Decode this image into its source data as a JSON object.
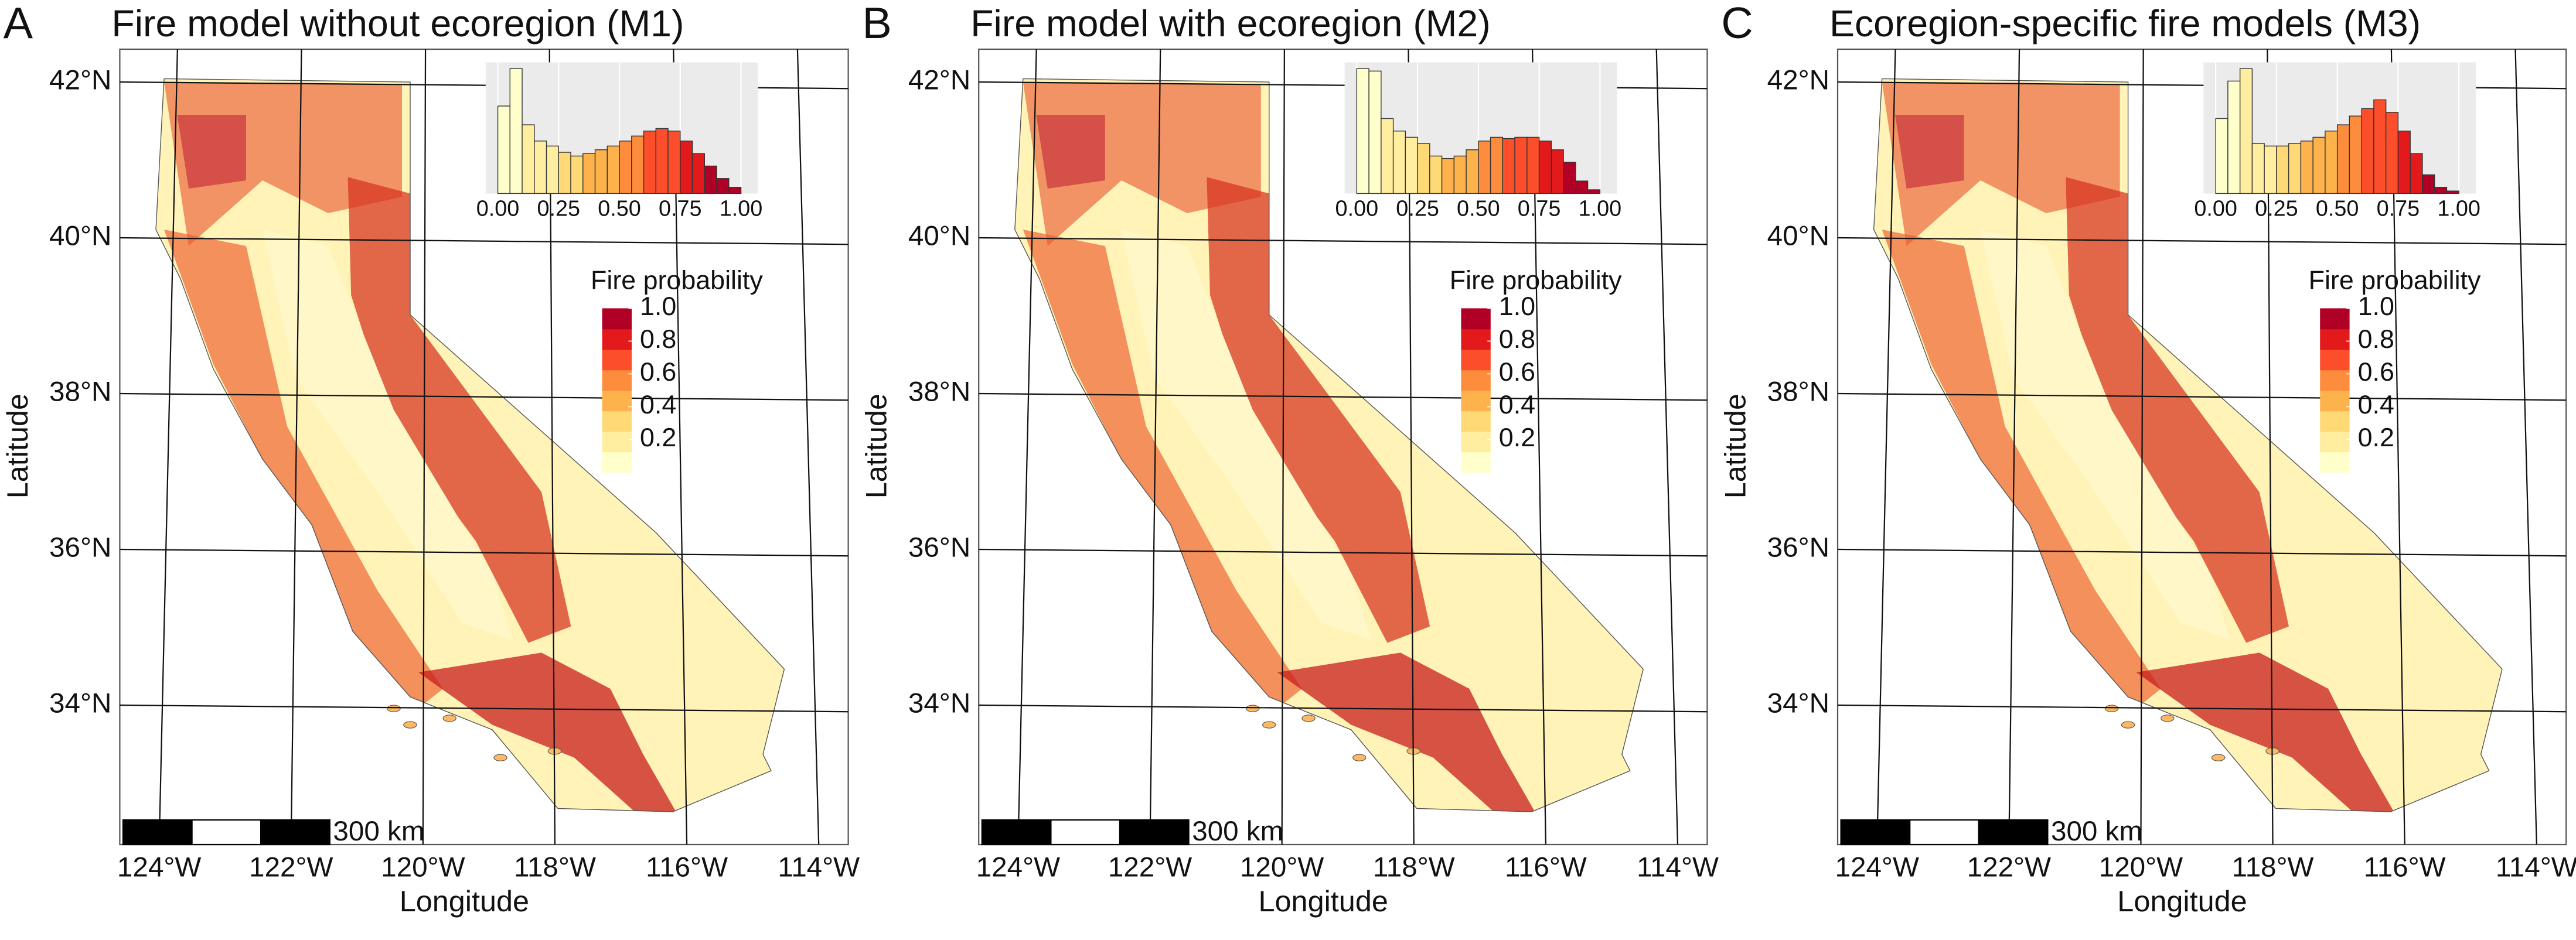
{
  "panels": [
    {
      "letter": "A",
      "title": "Fire model without ecoregion (M1)",
      "xlabel": "Longitude",
      "ylabel": "Latitude",
      "lat_ticks": [
        {
          "value": 42,
          "label": "42°N"
        },
        {
          "value": 40,
          "label": "40°N"
        },
        {
          "value": 38,
          "label": "38°N"
        },
        {
          "value": 36,
          "label": "36°N"
        },
        {
          "value": 34,
          "label": "34°N"
        }
      ],
      "lon_ticks": [
        {
          "value": -124,
          "label": "124°W"
        },
        {
          "value": -122,
          "label": "122°W"
        },
        {
          "value": -120,
          "label": "120°W"
        },
        {
          "value": -118,
          "label": "118°W"
        },
        {
          "value": -116,
          "label": "116°W"
        },
        {
          "value": -114,
          "label": "114°W"
        }
      ],
      "scale_bar": "300 km",
      "legend": {
        "title": "Fire probability",
        "lim": [
          0,
          1
        ],
        "ticks": [
          0.2,
          0.4,
          0.6,
          0.8,
          {
            "value": 1,
            "label": "1.0"
          }
        ],
        "colors": [
          "#ffffcc",
          "#ffeda0",
          "#fed976",
          "#feb24c",
          "#fd8d3c",
          "#fc4e2a",
          "#e31a1c",
          "#b10026"
        ]
      },
      "histogram": {
        "type": "histogram",
        "bins": [
          0,
          0.05,
          0.1,
          0.15,
          0.2,
          0.25,
          0.3,
          0.35,
          0.4,
          0.45,
          0.5,
          0.55,
          0.6,
          0.65,
          0.7,
          0.75,
          0.8,
          0.85,
          0.9,
          0.95,
          1
        ],
        "values": [
          0.7,
          1.0,
          0.55,
          0.42,
          0.38,
          0.33,
          0.3,
          0.32,
          0.35,
          0.38,
          0.42,
          0.46,
          0.5,
          0.52,
          0.5,
          0.42,
          0.32,
          0.22,
          0.12,
          0.05
        ],
        "xlim": [
          -0.05,
          1.07
        ],
        "ylim": [
          0,
          1.05
        ],
        "xticks": [
          {
            "value": 0,
            "label": "0.00"
          },
          0.25,
          {
            "value": 0.5,
            "label": "0.50"
          },
          0.75,
          {
            "value": 1,
            "label": "1.00"
          }
        ]
      }
    },
    {
      "letter": "B",
      "title": "Fire model with ecoregion (M2)",
      "xlabel": "Longitude",
      "ylabel": "Latitude",
      "lat_ticks": [
        {
          "value": 42,
          "label": "42°N"
        },
        {
          "value": 40,
          "label": "40°N"
        },
        {
          "value": 38,
          "label": "38°N"
        },
        {
          "value": 36,
          "label": "36°N"
        },
        {
          "value": 34,
          "label": "34°N"
        }
      ],
      "lon_ticks": [
        {
          "value": -124,
          "label": "124°W"
        },
        {
          "value": -122,
          "label": "122°W"
        },
        {
          "value": -120,
          "label": "120°W"
        },
        {
          "value": -118,
          "label": "118°W"
        },
        {
          "value": -116,
          "label": "116°W"
        },
        {
          "value": -114,
          "label": "114°W"
        }
      ],
      "scale_bar": "300 km",
      "legend": {
        "title": "Fire probability",
        "lim": [
          0,
          1
        ],
        "ticks": [
          0.2,
          0.4,
          0.6,
          0.8,
          {
            "value": 1,
            "label": "1.0"
          }
        ],
        "colors": [
          "#ffffcc",
          "#ffeda0",
          "#fed976",
          "#feb24c",
          "#fd8d3c",
          "#fc4e2a",
          "#e31a1c",
          "#b10026"
        ]
      },
      "histogram": {
        "type": "histogram",
        "bins": [
          0,
          0.05,
          0.1,
          0.15,
          0.2,
          0.25,
          0.3,
          0.35,
          0.4,
          0.45,
          0.5,
          0.55,
          0.6,
          0.65,
          0.7,
          0.75,
          0.8,
          0.85,
          0.9,
          0.95,
          1
        ],
        "values": [
          1.0,
          0.98,
          0.6,
          0.5,
          0.45,
          0.4,
          0.3,
          0.28,
          0.3,
          0.35,
          0.42,
          0.45,
          0.44,
          0.45,
          0.45,
          0.42,
          0.35,
          0.25,
          0.1,
          0.03
        ],
        "xlim": [
          -0.05,
          1.07
        ],
        "ylim": [
          0,
          1.05
        ],
        "xticks": [
          {
            "value": 0,
            "label": "0.00"
          },
          0.25,
          {
            "value": 0.5,
            "label": "0.50"
          },
          0.75,
          {
            "value": 1,
            "label": "1.00"
          }
        ]
      }
    },
    {
      "letter": "C",
      "title": "Ecoregion-specific fire models (M3)",
      "xlabel": "Longitude",
      "ylabel": "Latitude",
      "lat_ticks": [
        {
          "value": 42,
          "label": "42°N"
        },
        {
          "value": 40,
          "label": "40°N"
        },
        {
          "value": 38,
          "label": "38°N"
        },
        {
          "value": 36,
          "label": "36°N"
        },
        {
          "value": 34,
          "label": "34°N"
        }
      ],
      "lon_ticks": [
        {
          "value": -124,
          "label": "124°W"
        },
        {
          "value": -122,
          "label": "122°W"
        },
        {
          "value": -120,
          "label": "120°W"
        },
        {
          "value": -118,
          "label": "118°W"
        },
        {
          "value": -116,
          "label": "116°W"
        },
        {
          "value": -114,
          "label": "114°W"
        }
      ],
      "scale_bar": "300 km",
      "legend": {
        "title": "Fire probability",
        "lim": [
          0,
          1
        ],
        "ticks": [
          0.2,
          0.4,
          0.6,
          0.8,
          {
            "value": 1,
            "label": "1.0"
          }
        ],
        "colors": [
          "#ffffcc",
          "#ffeda0",
          "#fed976",
          "#feb24c",
          "#fd8d3c",
          "#fc4e2a",
          "#e31a1c",
          "#b10026"
        ]
      },
      "histogram": {
        "type": "histogram",
        "bins": [
          0,
          0.05,
          0.1,
          0.15,
          0.2,
          0.25,
          0.3,
          0.35,
          0.4,
          0.45,
          0.5,
          0.55,
          0.6,
          0.65,
          0.7,
          0.75,
          0.8,
          0.85,
          0.9,
          0.95,
          1
        ],
        "values": [
          0.6,
          0.9,
          1.0,
          0.4,
          0.38,
          0.38,
          0.4,
          0.42,
          0.45,
          0.5,
          0.55,
          0.62,
          0.68,
          0.75,
          0.65,
          0.5,
          0.32,
          0.15,
          0.05,
          0.02
        ],
        "xlim": [
          -0.05,
          1.07
        ],
        "ylim": [
          0,
          1.05
        ],
        "xticks": [
          {
            "value": 0,
            "label": "0.00"
          },
          0.25,
          {
            "value": 0.5,
            "label": "0.50"
          },
          0.75,
          {
            "value": 1,
            "label": "1.00"
          }
        ]
      }
    }
  ]
}
